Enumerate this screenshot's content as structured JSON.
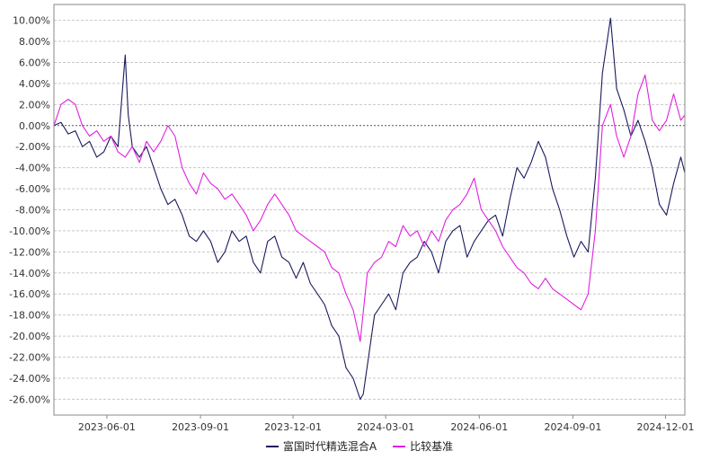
{
  "chart_data": {
    "type": "line",
    "title": "",
    "xlabel": "",
    "ylabel": "",
    "x_ticks": [
      "2023-06-01",
      "2023-09-01",
      "2023-12-01",
      "2024-03-01",
      "2024-06-01",
      "2024-09-01",
      "2024-12-01"
    ],
    "y_ticks": [
      "10.00%",
      "8.00%",
      "6.00%",
      "4.00%",
      "2.00%",
      "0.00%",
      "-2.00%",
      "-4.00%",
      "-6.00%",
      "-8.00%",
      "-10.00%",
      "-12.00%",
      "-14.00%",
      "-16.00%",
      "-18.00%",
      "-20.00%",
      "-22.00%",
      "-24.00%",
      "-26.00%"
    ],
    "ylim": [
      -27.5,
      11.5
    ],
    "xlim": [
      "2023-04-10",
      "2024-12-20"
    ],
    "grid": true,
    "legend_position": "bottom",
    "series": [
      {
        "name": "富国时代精选混合A",
        "color": "#1a1a5e",
        "points": [
          [
            "2023-04-10",
            0.0
          ],
          [
            "2023-04-17",
            0.3
          ],
          [
            "2023-04-24",
            -0.8
          ],
          [
            "2023-05-01",
            -0.5
          ],
          [
            "2023-05-08",
            -2.0
          ],
          [
            "2023-05-15",
            -1.5
          ],
          [
            "2023-05-22",
            -3.0
          ],
          [
            "2023-05-29",
            -2.5
          ],
          [
            "2023-06-05",
            -1.0
          ],
          [
            "2023-06-12",
            -2.0
          ],
          [
            "2023-06-16",
            3.0
          ],
          [
            "2023-06-19",
            6.7
          ],
          [
            "2023-06-22",
            1.0
          ],
          [
            "2023-06-26",
            -2.0
          ],
          [
            "2023-07-03",
            -3.0
          ],
          [
            "2023-07-10",
            -2.0
          ],
          [
            "2023-07-17",
            -4.0
          ],
          [
            "2023-07-24",
            -6.0
          ],
          [
            "2023-07-31",
            -7.5
          ],
          [
            "2023-08-07",
            -7.0
          ],
          [
            "2023-08-14",
            -8.5
          ],
          [
            "2023-08-21",
            -10.5
          ],
          [
            "2023-08-28",
            -11.0
          ],
          [
            "2023-09-04",
            -10.0
          ],
          [
            "2023-09-11",
            -11.0
          ],
          [
            "2023-09-18",
            -13.0
          ],
          [
            "2023-09-25",
            -12.0
          ],
          [
            "2023-10-02",
            -10.0
          ],
          [
            "2023-10-09",
            -11.0
          ],
          [
            "2023-10-16",
            -10.5
          ],
          [
            "2023-10-23",
            -13.0
          ],
          [
            "2023-10-30",
            -14.0
          ],
          [
            "2023-11-06",
            -11.0
          ],
          [
            "2023-11-13",
            -10.5
          ],
          [
            "2023-11-20",
            -12.5
          ],
          [
            "2023-11-27",
            -13.0
          ],
          [
            "2023-12-04",
            -14.5
          ],
          [
            "2023-12-11",
            -13.0
          ],
          [
            "2023-12-18",
            -15.0
          ],
          [
            "2023-12-25",
            -16.0
          ],
          [
            "2024-01-01",
            -17.0
          ],
          [
            "2024-01-08",
            -19.0
          ],
          [
            "2024-01-15",
            -20.0
          ],
          [
            "2024-01-22",
            -23.0
          ],
          [
            "2024-01-29",
            -24.0
          ],
          [
            "2024-02-05",
            -26.0
          ],
          [
            "2024-02-08",
            -25.5
          ],
          [
            "2024-02-19",
            -18.0
          ],
          [
            "2024-02-26",
            -17.0
          ],
          [
            "2024-03-04",
            -16.0
          ],
          [
            "2024-03-11",
            -17.5
          ],
          [
            "2024-03-18",
            -14.0
          ],
          [
            "2024-03-25",
            -13.0
          ],
          [
            "2024-04-01",
            -12.5
          ],
          [
            "2024-04-08",
            -11.0
          ],
          [
            "2024-04-15",
            -12.0
          ],
          [
            "2024-04-22",
            -14.0
          ],
          [
            "2024-04-29",
            -11.0
          ],
          [
            "2024-05-06",
            -10.0
          ],
          [
            "2024-05-13",
            -9.5
          ],
          [
            "2024-05-20",
            -12.5
          ],
          [
            "2024-05-27",
            -11.0
          ],
          [
            "2024-06-03",
            -10.0
          ],
          [
            "2024-06-10",
            -9.0
          ],
          [
            "2024-06-17",
            -8.5
          ],
          [
            "2024-06-24",
            -10.5
          ],
          [
            "2024-07-01",
            -7.0
          ],
          [
            "2024-07-08",
            -4.0
          ],
          [
            "2024-07-15",
            -5.0
          ],
          [
            "2024-07-22",
            -3.5
          ],
          [
            "2024-07-29",
            -1.5
          ],
          [
            "2024-08-05",
            -3.0
          ],
          [
            "2024-08-12",
            -6.0
          ],
          [
            "2024-08-19",
            -8.0
          ],
          [
            "2024-08-26",
            -10.5
          ],
          [
            "2024-09-02",
            -12.5
          ],
          [
            "2024-09-09",
            -11.0
          ],
          [
            "2024-09-16",
            -12.0
          ],
          [
            "2024-09-23",
            -5.0
          ],
          [
            "2024-09-30",
            5.0
          ],
          [
            "2024-10-08",
            10.2
          ],
          [
            "2024-10-14",
            3.5
          ],
          [
            "2024-10-21",
            1.5
          ],
          [
            "2024-10-28",
            -1.0
          ],
          [
            "2024-11-04",
            0.5
          ],
          [
            "2024-11-11",
            -1.5
          ],
          [
            "2024-11-18",
            -4.0
          ],
          [
            "2024-11-25",
            -7.5
          ],
          [
            "2024-12-02",
            -8.5
          ],
          [
            "2024-12-09",
            -5.5
          ],
          [
            "2024-12-16",
            -3.0
          ],
          [
            "2024-12-20",
            -4.5
          ]
        ]
      },
      {
        "name": "比较基准",
        "color": "#e020e0",
        "points": [
          [
            "2023-04-10",
            0.0
          ],
          [
            "2023-04-17",
            2.0
          ],
          [
            "2023-04-24",
            2.5
          ],
          [
            "2023-05-01",
            2.0
          ],
          [
            "2023-05-08",
            0.0
          ],
          [
            "2023-05-15",
            -1.0
          ],
          [
            "2023-05-22",
            -0.5
          ],
          [
            "2023-05-29",
            -1.5
          ],
          [
            "2023-06-05",
            -1.0
          ],
          [
            "2023-06-12",
            -2.5
          ],
          [
            "2023-06-19",
            -3.0
          ],
          [
            "2023-06-26",
            -2.0
          ],
          [
            "2023-07-03",
            -3.5
          ],
          [
            "2023-07-10",
            -1.5
          ],
          [
            "2023-07-17",
            -2.5
          ],
          [
            "2023-07-24",
            -1.5
          ],
          [
            "2023-07-31",
            0.0
          ],
          [
            "2023-08-07",
            -1.0
          ],
          [
            "2023-08-14",
            -4.0
          ],
          [
            "2023-08-21",
            -5.5
          ],
          [
            "2023-08-28",
            -6.5
          ],
          [
            "2023-09-04",
            -4.5
          ],
          [
            "2023-09-11",
            -5.5
          ],
          [
            "2023-09-18",
            -6.0
          ],
          [
            "2023-09-25",
            -7.0
          ],
          [
            "2023-10-02",
            -6.5
          ],
          [
            "2023-10-09",
            -7.5
          ],
          [
            "2023-10-16",
            -8.5
          ],
          [
            "2023-10-23",
            -10.0
          ],
          [
            "2023-10-30",
            -9.0
          ],
          [
            "2023-11-06",
            -7.5
          ],
          [
            "2023-11-13",
            -6.5
          ],
          [
            "2023-11-20",
            -7.5
          ],
          [
            "2023-11-27",
            -8.5
          ],
          [
            "2023-12-04",
            -10.0
          ],
          [
            "2023-12-11",
            -10.5
          ],
          [
            "2023-12-18",
            -11.0
          ],
          [
            "2023-12-25",
            -11.5
          ],
          [
            "2024-01-01",
            -12.0
          ],
          [
            "2024-01-08",
            -13.5
          ],
          [
            "2024-01-15",
            -14.0
          ],
          [
            "2024-01-22",
            -16.0
          ],
          [
            "2024-01-29",
            -17.5
          ],
          [
            "2024-02-05",
            -20.5
          ],
          [
            "2024-02-12",
            -14.0
          ],
          [
            "2024-02-19",
            -13.0
          ],
          [
            "2024-02-26",
            -12.5
          ],
          [
            "2024-03-04",
            -11.0
          ],
          [
            "2024-03-11",
            -11.5
          ],
          [
            "2024-03-18",
            -9.5
          ],
          [
            "2024-03-25",
            -10.5
          ],
          [
            "2024-04-01",
            -10.0
          ],
          [
            "2024-04-08",
            -11.5
          ],
          [
            "2024-04-15",
            -10.0
          ],
          [
            "2024-04-22",
            -11.0
          ],
          [
            "2024-04-29",
            -9.0
          ],
          [
            "2024-05-06",
            -8.0
          ],
          [
            "2024-05-13",
            -7.5
          ],
          [
            "2024-05-20",
            -6.5
          ],
          [
            "2024-05-27",
            -5.0
          ],
          [
            "2024-06-03",
            -8.0
          ],
          [
            "2024-06-10",
            -9.0
          ],
          [
            "2024-06-17",
            -10.0
          ],
          [
            "2024-06-24",
            -11.5
          ],
          [
            "2024-07-01",
            -12.5
          ],
          [
            "2024-07-08",
            -13.5
          ],
          [
            "2024-07-15",
            -14.0
          ],
          [
            "2024-07-22",
            -15.0
          ],
          [
            "2024-07-29",
            -15.5
          ],
          [
            "2024-08-05",
            -14.5
          ],
          [
            "2024-08-12",
            -15.5
          ],
          [
            "2024-08-19",
            -16.0
          ],
          [
            "2024-08-26",
            -16.5
          ],
          [
            "2024-09-02",
            -17.0
          ],
          [
            "2024-09-09",
            -17.5
          ],
          [
            "2024-09-16",
            -16.0
          ],
          [
            "2024-09-23",
            -10.0
          ],
          [
            "2024-09-30",
            0.0
          ],
          [
            "2024-10-08",
            2.0
          ],
          [
            "2024-10-14",
            -1.0
          ],
          [
            "2024-10-21",
            -3.0
          ],
          [
            "2024-10-28",
            -1.0
          ],
          [
            "2024-11-04",
            3.0
          ],
          [
            "2024-11-11",
            4.8
          ],
          [
            "2024-11-18",
            0.5
          ],
          [
            "2024-11-25",
            -0.5
          ],
          [
            "2024-12-02",
            0.5
          ],
          [
            "2024-12-09",
            3.0
          ],
          [
            "2024-12-16",
            0.5
          ],
          [
            "2024-12-20",
            1.0
          ]
        ]
      }
    ]
  }
}
